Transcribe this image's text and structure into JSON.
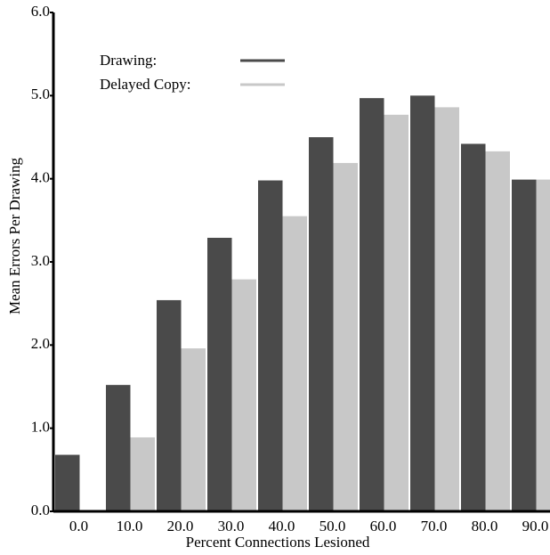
{
  "chart_data": {
    "type": "bar",
    "xlabel": "Percent Connections Lesioned",
    "ylabel": "Mean Errors Per Drawing",
    "categories": [
      "0.0",
      "10.0",
      "20.0",
      "30.0",
      "40.0",
      "50.0",
      "60.0",
      "70.0",
      "80.0",
      "90.0"
    ],
    "series": [
      {
        "name": "Drawing:",
        "color": "#4a4a4a",
        "values": [
          0.68,
          1.52,
          2.54,
          3.29,
          3.98,
          4.5,
          4.97,
          5.0,
          4.42,
          3.99
        ]
      },
      {
        "name": "Delayed Copy:",
        "color": "#c8c8c8",
        "values": [
          null,
          0.89,
          1.96,
          2.79,
          3.55,
          4.19,
          4.77,
          4.86,
          4.33,
          3.99
        ]
      }
    ],
    "ylim": [
      0,
      6
    ],
    "yticks": [
      {
        "value": 0,
        "label": "0.0"
      },
      {
        "value": 1,
        "label": "1.0"
      },
      {
        "value": 2,
        "label": "2.0"
      },
      {
        "value": 3,
        "label": "3.0"
      },
      {
        "value": 4,
        "label": "4.0"
      },
      {
        "value": 5,
        "label": "5.0"
      },
      {
        "value": 6,
        "label": "6.0"
      }
    ],
    "legend": "top-left"
  }
}
